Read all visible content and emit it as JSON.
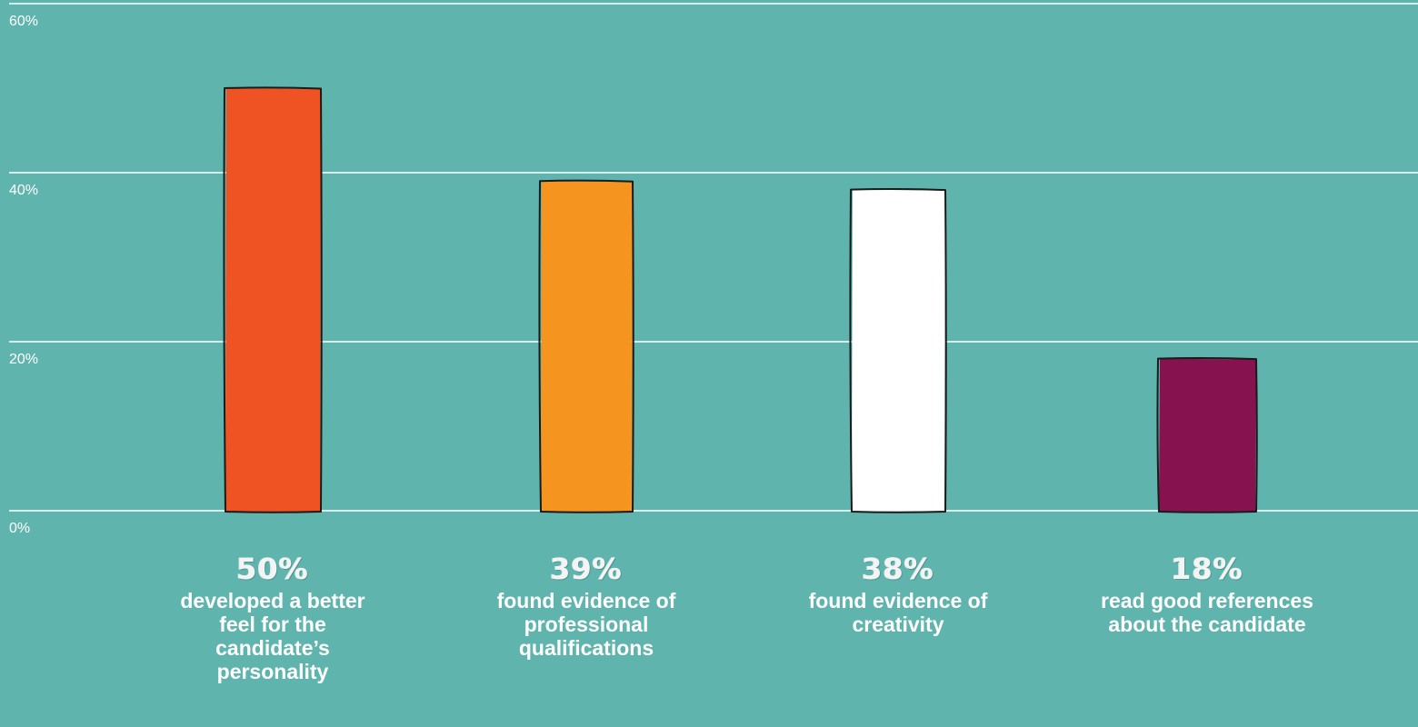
{
  "chart_data": {
    "type": "bar",
    "categories": [
      "developed a better feel for the candidate’s personality",
      "found evidence of professional qualifications",
      "found evidence of creativity",
      "read good references about the candidate"
    ],
    "values": [
      50,
      39,
      38,
      18
    ],
    "value_labels": [
      "50%",
      "39%",
      "38%",
      "18%"
    ],
    "colors": [
      "#ef5323",
      "#f5951f",
      "#ffffff",
      "#86124f"
    ],
    "ylim": [
      0,
      60
    ],
    "yticks": [
      0,
      20,
      40,
      60
    ],
    "ytick_labels": [
      "0%",
      "20%",
      "40%",
      "60%"
    ],
    "grid": true,
    "background": "#5fb5ae",
    "outline_color": "#1a1a1a"
  }
}
